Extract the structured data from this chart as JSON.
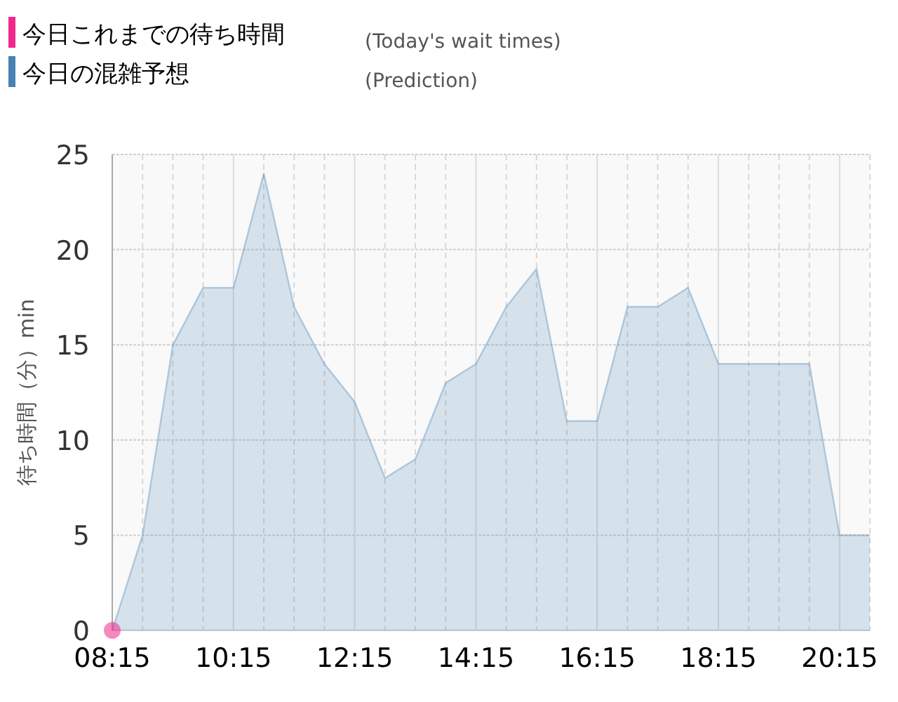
{
  "chart_data": {
    "type": "area",
    "ylabel": "待ち時間（分）min",
    "x": [
      8.25,
      8.75,
      9.25,
      9.75,
      10.25,
      10.75,
      11.25,
      11.75,
      12.25,
      12.75,
      13.25,
      13.75,
      14.25,
      14.75,
      15.25,
      15.75,
      16.25,
      16.75,
      17.25,
      17.75,
      18.25,
      18.75,
      19.25,
      19.75,
      20.25,
      20.75
    ],
    "series": [
      {
        "name": "今日これまでの待ち時間",
        "type": "scatter",
        "color": "#f0288c",
        "x": [
          8.25
        ],
        "values": [
          0
        ],
        "marker": "circle"
      },
      {
        "name": "今日の混雑予想",
        "color": "#4682b4",
        "values": [
          0,
          5,
          15,
          18,
          18,
          24,
          17,
          14,
          12,
          8,
          9,
          13,
          14,
          17,
          19,
          11,
          11,
          17,
          17,
          18,
          14,
          14,
          14,
          14,
          5,
          5
        ]
      }
    ],
    "xlim": [
      8.25,
      20.75
    ],
    "ylim": [
      0,
      25
    ],
    "yticks": [
      0,
      5,
      10,
      15,
      20,
      25
    ],
    "xticks": [
      {
        "value": 8.25,
        "label": "08:15"
      },
      {
        "value": 8.75,
        "label": null
      },
      {
        "value": 9.25,
        "label": null
      },
      {
        "value": 9.75,
        "label": null
      },
      {
        "value": 10.25,
        "label": "10:15"
      },
      {
        "value": 10.75,
        "label": null
      },
      {
        "value": 11.25,
        "label": null
      },
      {
        "value": 11.75,
        "label": null
      },
      {
        "value": 12.25,
        "label": "12:15"
      },
      {
        "value": 12.75,
        "label": null
      },
      {
        "value": 13.25,
        "label": null
      },
      {
        "value": 13.75,
        "label": null
      },
      {
        "value": 14.25,
        "label": "14:15"
      },
      {
        "value": 14.75,
        "label": null
      },
      {
        "value": 15.25,
        "label": null
      },
      {
        "value": 15.75,
        "label": null
      },
      {
        "value": 16.25,
        "label": "16:15"
      },
      {
        "value": 16.75,
        "label": null
      },
      {
        "value": 17.25,
        "label": null
      },
      {
        "value": 17.75,
        "label": null
      },
      {
        "value": 18.25,
        "label": "18:15"
      },
      {
        "value": 18.75,
        "label": null
      },
      {
        "value": 19.25,
        "label": null
      },
      {
        "value": 19.75,
        "label": null
      },
      {
        "value": 20.25,
        "label": "20:15"
      },
      {
        "value": 20.75,
        "label": null
      }
    ],
    "grid": true,
    "legend": "top left",
    "annotations": [
      "(Today's wait times)",
      "(Prediction)"
    ]
  }
}
